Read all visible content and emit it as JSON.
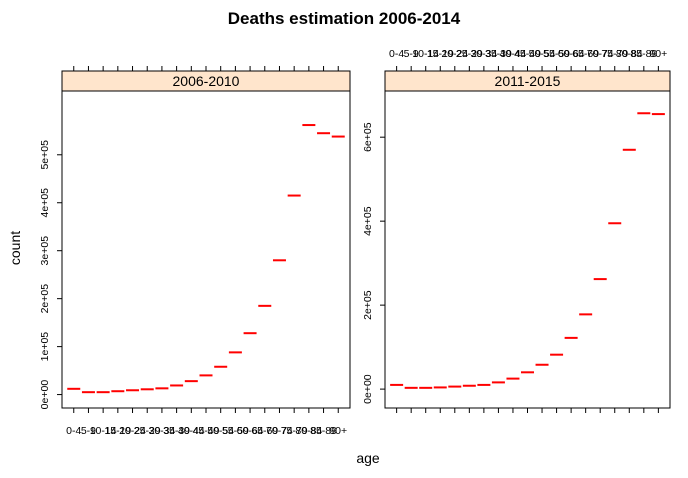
{
  "chart_data": {
    "type": "dot",
    "title": "Deaths estimation 2006-2014",
    "xlabel": "age",
    "ylabel": "count",
    "categories": [
      "0-4",
      "5-9",
      "10-14",
      "15-19",
      "20-24",
      "25-29",
      "30-34",
      "35-39",
      "40-44",
      "45-49",
      "50-54",
      "55-59",
      "60-64",
      "65-69",
      "70-74",
      "75-79",
      "80-84",
      "85-89",
      "90+"
    ],
    "marker_color": "#ff0000",
    "strip_color": "#ffe5cc",
    "panels": [
      {
        "name": "2006-2010",
        "yticks": [
          0,
          100000,
          200000,
          300000,
          400000,
          500000
        ],
        "ytick_labels": [
          "0e+00",
          "1e+05",
          "2e+05",
          "3e+05",
          "4e+05",
          "5e+05"
        ],
        "ylim": [
          -28000,
          633000
        ],
        "values": [
          12000,
          5000,
          5000,
          7000,
          9000,
          11000,
          13000,
          19000,
          28000,
          40000,
          58000,
          88000,
          128000,
          185000,
          280000,
          415000,
          562000,
          545000,
          538000
        ]
      },
      {
        "name": "2011-2015",
        "yticks": [
          0,
          200000,
          400000,
          600000
        ],
        "ytick_labels": [
          "0e+00",
          "2e+05",
          "4e+05",
          "6e+05"
        ],
        "ylim": [
          -45000,
          710000
        ],
        "values": [
          10000,
          3000,
          3000,
          4000,
          6000,
          8000,
          10000,
          16000,
          25000,
          40000,
          58000,
          82000,
          122000,
          178000,
          262000,
          395000,
          570000,
          657000,
          655000
        ]
      }
    ]
  }
}
